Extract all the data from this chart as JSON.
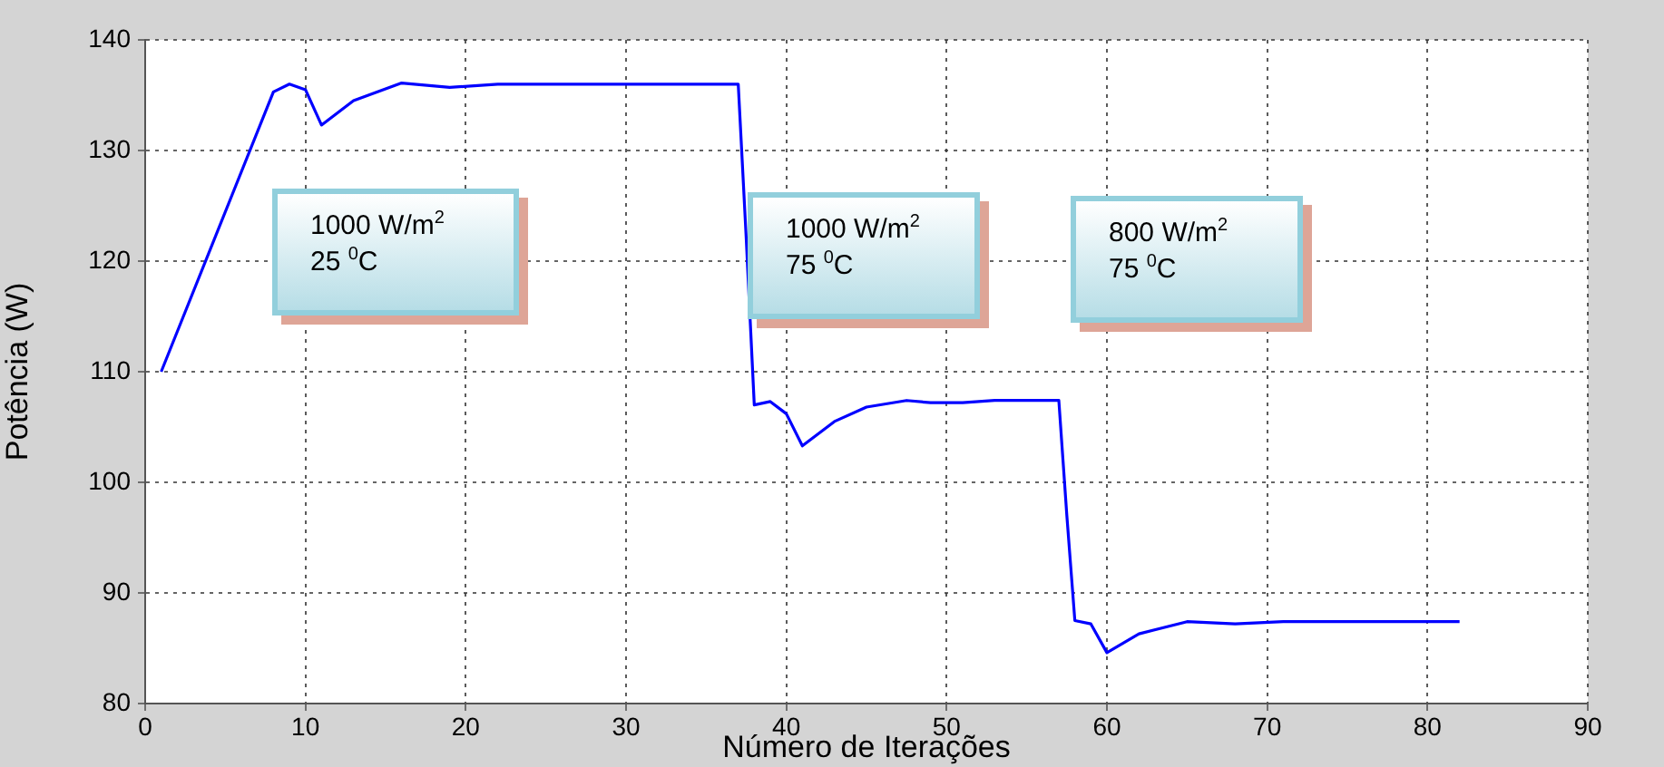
{
  "chart_data": {
    "type": "line",
    "xlabel": "Número de Iterações",
    "ylabel": "Potência (W)",
    "xlim": [
      0,
      90
    ],
    "xticks": [
      0,
      10,
      20,
      30,
      40,
      50,
      60,
      70,
      80,
      90
    ],
    "ylim": [
      80,
      140
    ],
    "yticks": [
      80,
      90,
      100,
      110,
      120,
      130,
      140
    ],
    "grid": true,
    "legend": false,
    "marker": "none",
    "line_style": "solid",
    "annotations": [
      "1000 W/m$^{2}$\n25 $^{0}$C",
      "1000 W/m$^{2}$\n75 $^{0}$C",
      "800 W/m$^{2}$\n75 $^{0}$C"
    ],
    "series": [
      {
        "color": "#0000ff",
        "x": [
          1,
          8,
          9,
          10,
          11,
          13,
          16,
          19,
          22,
          37,
          37.5,
          38,
          39,
          40,
          41,
          43,
          45,
          47.5,
          49,
          51,
          53,
          57,
          57.5,
          58,
          59,
          60,
          62,
          65,
          68,
          71,
          82
        ],
        "values": [
          110,
          135.3,
          136,
          135.5,
          132.3,
          134.5,
          136.1,
          135.7,
          136,
          136,
          122,
          107,
          107.3,
          106.2,
          103.3,
          105.5,
          106.8,
          107.4,
          107.2,
          107.2,
          107.4,
          107.4,
          97,
          87.5,
          87.2,
          84.6,
          86.3,
          87.4,
          87.2,
          87.4,
          87.4
        ]
      }
    ]
  }
}
